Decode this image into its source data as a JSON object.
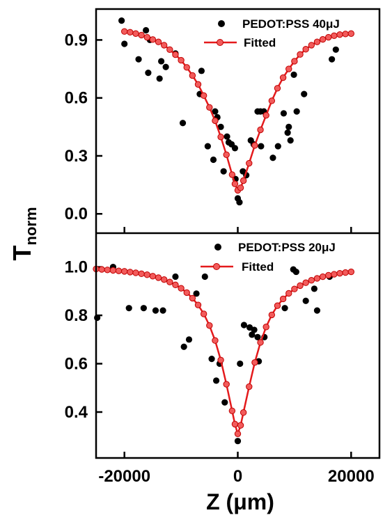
{
  "chart_data": [
    {
      "type": "scatter",
      "panel": "top",
      "xlim": [
        -25000,
        25000
      ],
      "ylim": [
        -0.1,
        1.06
      ],
      "yticks": [
        "0.0",
        "0.3",
        "0.6",
        "0.9"
      ],
      "grid": false,
      "legend_position": "top-right",
      "series": [
        {
          "name": "PEDOT:PSS 40μJ",
          "kind": "scatter",
          "color": "#000000",
          "points": [
            [
              -20500,
              1.0
            ],
            [
              -20000,
              0.88
            ],
            [
              -16200,
              0.95
            ],
            [
              -15500,
              0.9
            ],
            [
              -17500,
              0.8
            ],
            [
              -15800,
              0.73
            ],
            [
              -13800,
              0.7
            ],
            [
              -13500,
              0.79
            ],
            [
              -12700,
              0.76
            ],
            [
              -11000,
              0.83
            ],
            [
              -9700,
              0.47
            ],
            [
              -6700,
              0.62
            ],
            [
              -6400,
              0.74
            ],
            [
              -5300,
              0.35
            ],
            [
              -4000,
              0.53
            ],
            [
              -3600,
              0.5
            ],
            [
              -4300,
              0.28
            ],
            [
              -3000,
              0.45
            ],
            [
              -2500,
              0.22
            ],
            [
              -1900,
              0.4
            ],
            [
              -1600,
              0.37
            ],
            [
              -1100,
              0.36
            ],
            [
              -500,
              0.34
            ],
            [
              -400,
              0.18
            ],
            [
              0,
              0.08
            ],
            [
              300,
              0.06
            ],
            [
              900,
              0.22
            ],
            [
              1500,
              0.2
            ],
            [
              2300,
              0.38
            ],
            [
              2800,
              0.36
            ],
            [
              3500,
              0.53
            ],
            [
              4000,
              0.53
            ],
            [
              4600,
              0.53
            ],
            [
              4100,
              0.35
            ],
            [
              6200,
              0.29
            ],
            [
              7100,
              0.35
            ],
            [
              8100,
              0.52
            ],
            [
              8800,
              0.42
            ],
            [
              9300,
              0.38
            ],
            [
              9900,
              0.72
            ],
            [
              10400,
              0.53
            ],
            [
              11700,
              0.62
            ],
            [
              9000,
              0.45
            ],
            [
              16600,
              0.8
            ],
            [
              17300,
              0.85
            ]
          ]
        },
        {
          "name": "Fitted",
          "kind": "line",
          "color": "#e41a1c",
          "points": [
            [
              -20000,
              0.944
            ],
            [
              -19000,
              0.94
            ],
            [
              -18000,
              0.933
            ],
            [
              -17000,
              0.925
            ],
            [
              -16000,
              0.914
            ],
            [
              -15000,
              0.902
            ],
            [
              -14000,
              0.89
            ],
            [
              -13000,
              0.873
            ],
            [
              -12000,
              0.85
            ],
            [
              -11000,
              0.824
            ],
            [
              -10000,
              0.795
            ],
            [
              -9000,
              0.758
            ],
            [
              -8000,
              0.716
            ],
            [
              -7000,
              0.67
            ],
            [
              -6000,
              0.612
            ],
            [
              -5000,
              0.551
            ],
            [
              -4000,
              0.482
            ],
            [
              -3000,
              0.398
            ],
            [
              -2000,
              0.306
            ],
            [
              -1000,
              0.203
            ],
            [
              -500,
              0.155
            ],
            [
              0,
              0.122
            ],
            [
              500,
              0.135
            ],
            [
              1000,
              0.172
            ],
            [
              2000,
              0.262
            ],
            [
              3000,
              0.354
            ],
            [
              4000,
              0.435
            ],
            [
              5000,
              0.51
            ],
            [
              6000,
              0.585
            ],
            [
              7000,
              0.65
            ],
            [
              8000,
              0.705
            ],
            [
              9000,
              0.75
            ],
            [
              10000,
              0.79
            ],
            [
              11000,
              0.825
            ],
            [
              12000,
              0.852
            ],
            [
              13000,
              0.873
            ],
            [
              14000,
              0.89
            ],
            [
              15000,
              0.903
            ],
            [
              16000,
              0.914
            ],
            [
              17000,
              0.922
            ],
            [
              18000,
              0.928
            ],
            [
              19000,
              0.931
            ],
            [
              20000,
              0.933
            ]
          ]
        }
      ]
    },
    {
      "type": "scatter",
      "panel": "bottom",
      "xlim": [
        -25000,
        25000
      ],
      "ylim": [
        0.21,
        1.14
      ],
      "yticks": [
        "0.4",
        "0.6",
        "0.8",
        "1.0"
      ],
      "grid": false,
      "legend_position": "top-right",
      "series": [
        {
          "name": "PEDOT:PSS 20μJ",
          "kind": "scatter",
          "color": "#000000",
          "points": [
            [
              -24800,
              0.79
            ],
            [
              -22000,
              1.0
            ],
            [
              -19200,
              0.83
            ],
            [
              -16600,
              0.83
            ],
            [
              -14500,
              0.82
            ],
            [
              -13200,
              0.82
            ],
            [
              -11000,
              0.96
            ],
            [
              -9500,
              0.67
            ],
            [
              -8600,
              0.7
            ],
            [
              -7300,
              0.89
            ],
            [
              -5800,
              0.96
            ],
            [
              -4600,
              0.62
            ],
            [
              -3800,
              0.53
            ],
            [
              -3200,
              0.6
            ],
            [
              -2300,
              0.44
            ],
            [
              0,
              0.28
            ],
            [
              400,
              0.6
            ],
            [
              1100,
              0.76
            ],
            [
              2100,
              0.75
            ],
            [
              2500,
              0.72
            ],
            [
              2900,
              0.74
            ],
            [
              3500,
              0.71
            ],
            [
              3700,
              0.61
            ],
            [
              4700,
              0.71
            ],
            [
              8300,
              0.83
            ],
            [
              9800,
              0.99
            ],
            [
              10300,
              0.98
            ],
            [
              12000,
              0.86
            ],
            [
              13500,
              0.91
            ],
            [
              14000,
              0.82
            ],
            [
              16200,
              0.96
            ]
          ]
        },
        {
          "name": "Fitted",
          "kind": "line",
          "color": "#e41a1c",
          "points": [
            [
              -25000,
              0.992
            ],
            [
              -24000,
              0.99
            ],
            [
              -23000,
              0.988
            ],
            [
              -22000,
              0.986
            ],
            [
              -21000,
              0.984
            ],
            [
              -20000,
              0.982
            ],
            [
              -19000,
              0.979
            ],
            [
              -18000,
              0.976
            ],
            [
              -17000,
              0.972
            ],
            [
              -16000,
              0.968
            ],
            [
              -15000,
              0.962
            ],
            [
              -14000,
              0.956
            ],
            [
              -13000,
              0.948
            ],
            [
              -12000,
              0.938
            ],
            [
              -11000,
              0.926
            ],
            [
              -10000,
              0.912
            ],
            [
              -9000,
              0.894
            ],
            [
              -8000,
              0.871
            ],
            [
              -7000,
              0.843
            ],
            [
              -6000,
              0.806
            ],
            [
              -5000,
              0.758
            ],
            [
              -4000,
              0.696
            ],
            [
              -3000,
              0.615
            ],
            [
              -2000,
              0.515
            ],
            [
              -1000,
              0.405
            ],
            [
              -500,
              0.35
            ],
            [
              0,
              0.31
            ],
            [
              500,
              0.345
            ],
            [
              1000,
              0.398
            ],
            [
              2000,
              0.505
            ],
            [
              3000,
              0.605
            ],
            [
              4000,
              0.688
            ],
            [
              5000,
              0.752
            ],
            [
              6000,
              0.802
            ],
            [
              7000,
              0.84
            ],
            [
              8000,
              0.868
            ],
            [
              9000,
              0.891
            ],
            [
              10000,
              0.909
            ],
            [
              11000,
              0.923
            ],
            [
              12000,
              0.935
            ],
            [
              13000,
              0.945
            ],
            [
              14000,
              0.953
            ],
            [
              15000,
              0.96
            ],
            [
              16000,
              0.966
            ],
            [
              17000,
              0.97
            ],
            [
              18000,
              0.974
            ],
            [
              19000,
              0.977
            ],
            [
              20000,
              0.98
            ]
          ]
        }
      ]
    }
  ],
  "xaxis": {
    "ticks": [
      {
        "value": -20000,
        "label": "-20000"
      },
      {
        "value": 0,
        "label": "0"
      },
      {
        "value": 20000,
        "label": "20000"
      }
    ],
    "title": "Z (μm)"
  },
  "yaxis": {
    "title_main": "T",
    "title_sub": "norm"
  },
  "legend": {
    "top": {
      "scatter_label": "PEDOT:PSS 40μJ",
      "line_label": "Fitted"
    },
    "bottom": {
      "scatter_label": "PEDOT:PSS 20μJ",
      "line_label": "Fitted"
    }
  }
}
